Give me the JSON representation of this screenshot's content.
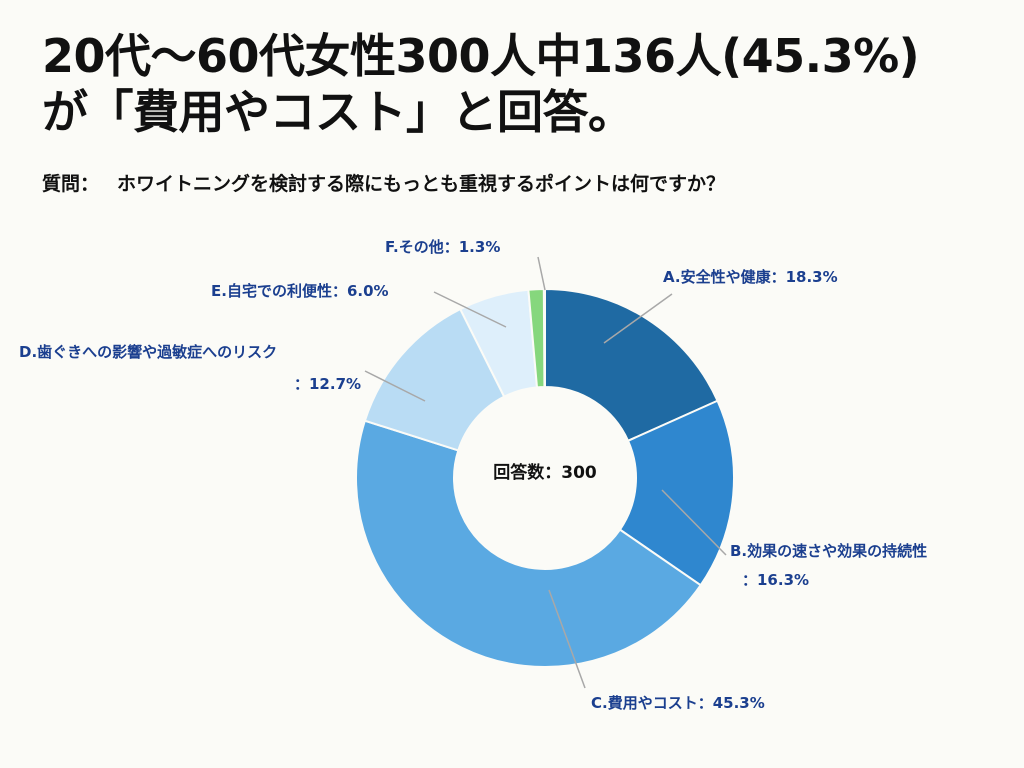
{
  "title_lines": [
    "20代〜60代女性300人中136人(45.3%)",
    "が「費用やコスト」と回答。"
  ],
  "question": {
    "label": "質問：",
    "text": "ホワイトニングを検討する際にもっとも重視するポイントは何ですか？"
  },
  "center_label": "回答数：300",
  "chart_data": {
    "type": "pie",
    "title": "ホワイトニングを検討する際にもっとも重視するポイントは何ですか？",
    "total_responses": 300,
    "slices": [
      {
        "name": "A.安全性や健康",
        "value": 18.3,
        "label_lines": [
          "A.安全性や健康：18.3%"
        ],
        "color": "#1f6aa3"
      },
      {
        "name": "B.効果の速さや効果の持続性",
        "value": 16.3,
        "label_lines": [
          "B.効果の速さや効果の持続性",
          "：16.3%"
        ],
        "color": "#2f87cf"
      },
      {
        "name": "C.費用やコスト",
        "value": 45.3,
        "label_lines": [
          "C.費用やコスト：45.3%"
        ],
        "color": "#5aa9e2"
      },
      {
        "name": "D.歯ぐきへの影響や過敏症へのリスク",
        "value": 12.7,
        "label_lines": [
          "D.歯ぐきへの影響や過敏症へのリスク",
          "：12.7%"
        ],
        "color": "#b9dcf4"
      },
      {
        "name": "E.自宅での利便性",
        "value": 6.0,
        "label_lines": [
          "E.自宅での利便性：6.0%"
        ],
        "color": "#deeffb"
      },
      {
        "name": "F.その他",
        "value": 1.3,
        "label_lines": [
          "F.その他：1.3%"
        ],
        "color": "#86d77d"
      }
    ]
  }
}
